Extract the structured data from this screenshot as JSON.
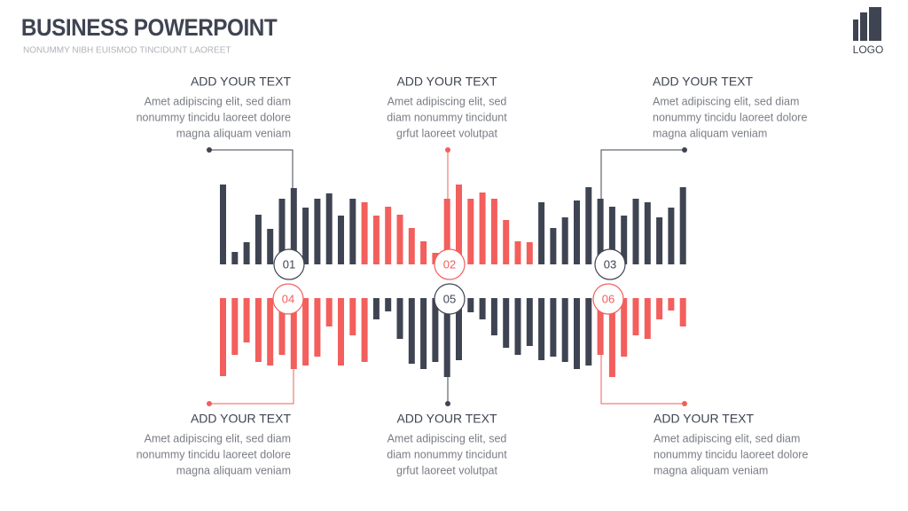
{
  "header": {
    "title": "BUSINESS POWERPOINT",
    "subtitle": "NONUMMY NIBH EUISMOD TINCIDUNT LAOREET"
  },
  "logo": {
    "label": "LOGO"
  },
  "items": [
    {
      "number": "01",
      "heading": "ADD YOUR TEXT",
      "lines": [
        "Amet adipiscing elit, sed diam",
        "nonummy tincidu laoreet dolore",
        "magna aliquam veniam"
      ]
    },
    {
      "number": "02",
      "heading": "ADD YOUR TEXT",
      "lines": [
        "Amet adipiscing elit, sed",
        "diam nonummy tincidunt",
        "grfut laoreet volutpat"
      ]
    },
    {
      "number": "03",
      "heading": "ADD YOUR TEXT",
      "lines": [
        "Amet adipiscing elit, sed diam",
        "nonummy tincidu laoreet dolore",
        "magna aliquam veniam"
      ]
    },
    {
      "number": "04",
      "heading": "ADD YOUR TEXT",
      "lines": [
        "Amet adipiscing elit, sed diam",
        "nonummy tincidu laoreet dolore",
        "magna aliquam veniam"
      ]
    },
    {
      "number": "05",
      "heading": "ADD YOUR TEXT",
      "lines": [
        "Amet adipiscing elit, sed",
        "diam nonummy tincidunt",
        "grfut laoreet volutpat"
      ]
    },
    {
      "number": "06",
      "heading": "ADD YOUR TEXT",
      "lines": [
        "Amet adipiscing elit, sed diam",
        "nonummy tincidu laoreet dolore",
        "magna aliquam veniam"
      ]
    }
  ]
}
